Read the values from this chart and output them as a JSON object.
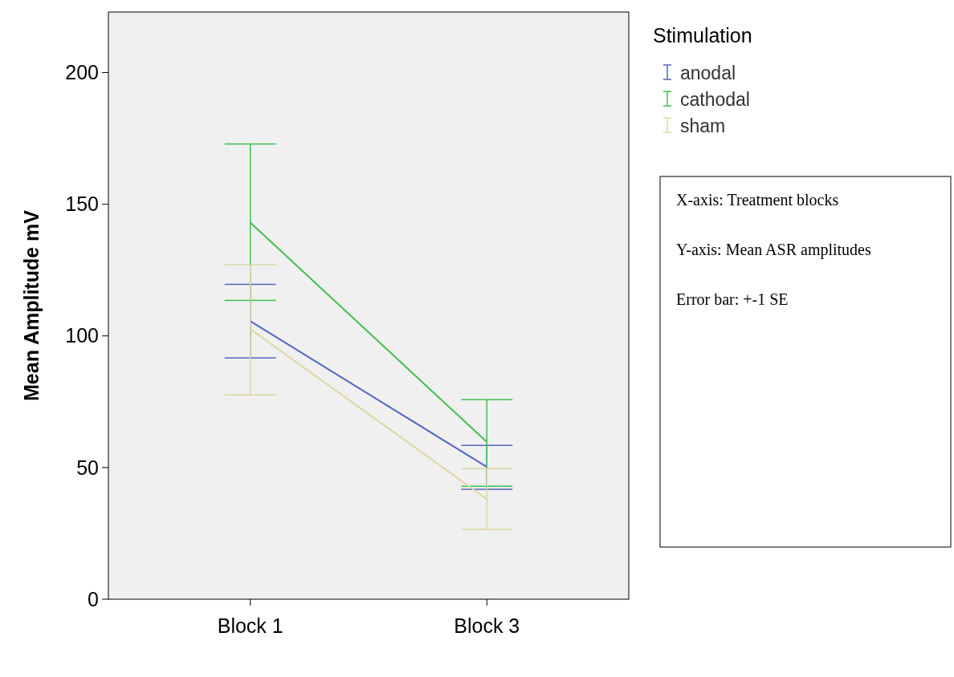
{
  "chart_data": {
    "type": "line",
    "ylabel": "Mean Amplitude mV",
    "legend_title": "Stimulation",
    "categories": [
      "Block 1",
      "Block 3"
    ],
    "ylim": [
      0,
      223
    ],
    "yticks": [
      0,
      50,
      100,
      150,
      200
    ],
    "legend": "top right",
    "grid": false,
    "marker": "none",
    "line_style": "solid",
    "series": [
      {
        "name": "anodal",
        "color": "#5566c0",
        "values": [
          105.6,
          50.2
        ],
        "errors": [
          [
            91.6,
            119.6
          ],
          [
            41.7,
            58.4
          ]
        ]
      },
      {
        "name": "cathodal",
        "color": "#40bf50",
        "values": [
          143,
          59.7
        ],
        "errors": [
          [
            113.5,
            172.9
          ],
          [
            42.9,
            75.8
          ]
        ]
      },
      {
        "name": "sham",
        "color": "#ddd6a0",
        "values": [
          102.6,
          38
        ],
        "errors": [
          [
            77.6,
            127
          ],
          [
            26.5,
            49.6
          ]
        ]
      }
    ],
    "annotations": [
      "X-axis: Treatment blocks",
      "Y-axis: Mean ASR amplitudes",
      "Error bar: +-1 SE"
    ]
  }
}
